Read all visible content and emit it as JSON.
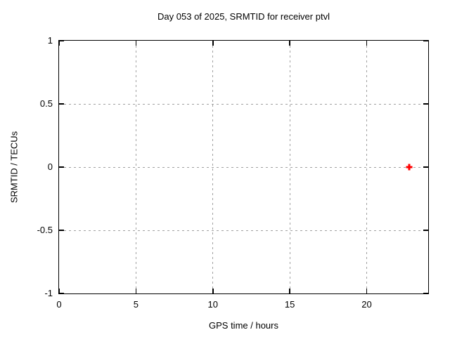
{
  "chart_data": {
    "type": "scatter",
    "title": "Day 053 of 2025, SRMTID for receiver ptvl",
    "xlabel": "GPS time / hours",
    "ylabel": "SRMTID / TECUs",
    "xlim": [
      0,
      24
    ],
    "ylim": [
      -1,
      1
    ],
    "x_ticks": {
      "values": [
        0,
        5,
        10,
        15,
        20
      ],
      "labels": [
        "0",
        "5",
        "10",
        "15",
        "20"
      ]
    },
    "y_ticks": {
      "values": [
        1,
        0.5,
        0,
        -0.5,
        -1
      ],
      "labels": [
        "1",
        "0.5",
        "0",
        "-0.5",
        "-1"
      ]
    },
    "grid": true,
    "grid_style": "dashed",
    "legend": "none",
    "colors": {
      "grid": "#a0a0a0",
      "frame": "#000000",
      "text": "#000000",
      "background": "#ffffff"
    },
    "series": [
      {
        "name": "SRMTID",
        "marker": "plus",
        "color": "#ff0000",
        "points": [
          {
            "x": 22.75,
            "y": 0.0
          }
        ]
      }
    ]
  }
}
